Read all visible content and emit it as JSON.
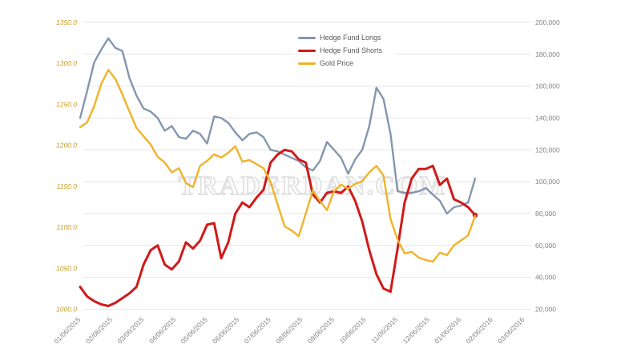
{
  "watermark": {
    "text": "TRADERDAN.COM"
  },
  "chart_data": {
    "type": "line",
    "title": "",
    "legend_position": "top-center",
    "grid": {
      "horizontal": true,
      "vertical": false
    },
    "x_tick_labels": [
      "01/06/2015",
      "02/06/2015",
      "03/06/2015",
      "04/06/2015",
      "05/06/2015",
      "06/06/2015",
      "07/06/2015",
      "08/06/2015",
      "09/06/2015",
      "10/06/2015",
      "11/06/2015",
      "12/06/2015",
      "01/06/2016",
      "02/06/2016",
      "03/06/2016"
    ],
    "x_dates": [
      "01/06/2015",
      "01/13/2015",
      "01/20/2015",
      "01/27/2015",
      "02/03/2015",
      "02/10/2015",
      "02/17/2015",
      "02/24/2015",
      "03/03/2015",
      "03/10/2015",
      "03/17/2015",
      "03/24/2015",
      "03/31/2015",
      "04/07/2015",
      "04/14/2015",
      "04/21/2015",
      "04/28/2015",
      "05/05/2015",
      "05/12/2015",
      "05/19/2015",
      "05/26/2015",
      "06/02/2015",
      "06/09/2015",
      "06/16/2015",
      "06/23/2015",
      "06/30/2015",
      "07/07/2015",
      "07/14/2015",
      "07/21/2015",
      "07/28/2015",
      "08/04/2015",
      "08/11/2015",
      "08/18/2015",
      "08/25/2015",
      "09/01/2015",
      "09/08/2015",
      "09/15/2015",
      "09/22/2015",
      "09/29/2015",
      "10/06/2015",
      "10/13/2015",
      "10/20/2015",
      "10/27/2015",
      "11/03/2015",
      "11/10/2015",
      "11/17/2015",
      "11/24/2015",
      "12/01/2015",
      "12/08/2015",
      "12/15/2015",
      "12/22/2015",
      "12/29/2015",
      "01/05/2016",
      "01/12/2016",
      "01/19/2016",
      "01/26/2016",
      "02/02/2016"
    ],
    "left_axis": {
      "min": 1000,
      "max": 1350,
      "step": 50,
      "labels": [
        "1000.0",
        "1050.0",
        "1100.0",
        "1150.0",
        "1200.0",
        "1250.0",
        "1300.0",
        "1350.0"
      ],
      "color": "#c79a26"
    },
    "right_axis": {
      "min": 20000,
      "max": 200000,
      "step": 20000,
      "labels": [
        "20,000",
        "40,000",
        "60,000",
        "80,000",
        "100,000",
        "120,000",
        "140,000",
        "160,000",
        "180,000",
        "200,000"
      ],
      "color": "#848484"
    },
    "series": [
      {
        "name": "Hedge Fund Longs",
        "color": "#8496b0",
        "axis": "right",
        "end_marker": false,
        "values": [
          140000,
          157000,
          175000,
          183000,
          190000,
          184000,
          182000,
          165000,
          154000,
          146000,
          144000,
          140000,
          132000,
          135000,
          128000,
          127000,
          132000,
          130000,
          124000,
          141000,
          140000,
          137000,
          131000,
          126000,
          130000,
          131000,
          128000,
          120000,
          119000,
          117000,
          115000,
          113000,
          109000,
          107000,
          113000,
          125000,
          120000,
          115000,
          105000,
          114000,
          120000,
          135000,
          159000,
          152000,
          130000,
          94000,
          93000,
          93000,
          94000,
          96000,
          92000,
          88000,
          80000,
          84000,
          85000,
          87000,
          102000
        ]
      },
      {
        "name": "Hedge Fund Shorts",
        "color": "#d01a1a",
        "axis": "right",
        "end_marker": true,
        "values": [
          34000,
          28000,
          25000,
          23000,
          22000,
          24000,
          27000,
          30000,
          34000,
          48000,
          57000,
          60000,
          48000,
          45000,
          50000,
          62000,
          58000,
          63000,
          73000,
          74000,
          52000,
          62000,
          80000,
          87000,
          84000,
          90000,
          95000,
          112000,
          117000,
          120000,
          119000,
          114000,
          112000,
          92000,
          87000,
          93000,
          94000,
          93000,
          97000,
          88000,
          75000,
          57000,
          42000,
          33000,
          31000,
          58000,
          87000,
          102000,
          108000,
          108000,
          110000,
          98000,
          102000,
          89000,
          87000,
          84000,
          79000
        ]
      },
      {
        "name": "Gold Price",
        "color": "#f1b229",
        "axis": "left",
        "end_marker": false,
        "values": [
          1222,
          1228,
          1248,
          1275,
          1292,
          1281,
          1262,
          1241,
          1221,
          1211,
          1201,
          1186,
          1179,
          1167,
          1172,
          1154,
          1149,
          1175,
          1181,
          1189,
          1185,
          1191,
          1199,
          1180,
          1182,
          1177,
          1172,
          1155,
          1128,
          1101,
          1096,
          1089,
          1117,
          1145,
          1132,
          1121,
          1144,
          1152,
          1147,
          1153,
          1156,
          1167,
          1175,
          1163,
          1110,
          1085,
          1068,
          1070,
          1063,
          1060,
          1058,
          1069,
          1066,
          1078,
          1084,
          1090,
          1114
        ]
      }
    ]
  }
}
